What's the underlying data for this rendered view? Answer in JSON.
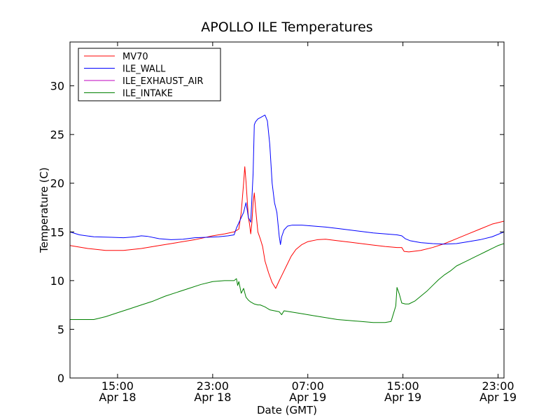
{
  "chart_data": {
    "type": "line",
    "title": "APOLLO ILE Temperatures",
    "xlabel": "Date (GMT)",
    "ylabel": "Temperature (C)",
    "x_unit": "hours",
    "xlim": [
      11.0,
      47.5
    ],
    "ylim": [
      0,
      34.5
    ],
    "y_ticks": [
      0,
      5,
      10,
      15,
      20,
      25,
      30
    ],
    "x_ticks": [
      {
        "x": 15,
        "time": "15:00",
        "date": "Apr 18"
      },
      {
        "x": 23,
        "time": "23:00",
        "date": "Apr 18"
      },
      {
        "x": 31,
        "time": "07:00",
        "date": "Apr 19"
      },
      {
        "x": 39,
        "time": "15:00",
        "date": "Apr 19"
      },
      {
        "x": 47,
        "time": "23:00",
        "date": "Apr 19"
      }
    ],
    "legend_position": "top-left",
    "series": [
      {
        "name": "MV70",
        "color": "#ff0000",
        "points": [
          [
            11.0,
            13.6
          ],
          [
            12.5,
            13.3
          ],
          [
            14.0,
            13.1
          ],
          [
            15.5,
            13.1
          ],
          [
            17.0,
            13.3
          ],
          [
            18.5,
            13.6
          ],
          [
            20.0,
            13.9
          ],
          [
            21.5,
            14.2
          ],
          [
            23.0,
            14.6
          ],
          [
            24.0,
            14.8
          ],
          [
            24.8,
            15.0
          ],
          [
            25.2,
            15.3
          ],
          [
            25.4,
            17.0
          ],
          [
            25.6,
            20.0
          ],
          [
            25.7,
            21.7
          ],
          [
            25.8,
            20.2
          ],
          [
            26.0,
            16.5
          ],
          [
            26.1,
            15.8
          ],
          [
            26.2,
            14.8
          ],
          [
            26.3,
            16.0
          ],
          [
            26.4,
            18.0
          ],
          [
            26.5,
            19.0
          ],
          [
            26.6,
            17.5
          ],
          [
            26.8,
            15.0
          ],
          [
            27.0,
            14.3
          ],
          [
            27.2,
            13.5
          ],
          [
            27.4,
            12.0
          ],
          [
            27.7,
            10.8
          ],
          [
            28.0,
            9.8
          ],
          [
            28.3,
            9.2
          ],
          [
            28.6,
            10.0
          ],
          [
            28.8,
            10.5
          ],
          [
            29.2,
            11.5
          ],
          [
            29.6,
            12.5
          ],
          [
            30.0,
            13.2
          ],
          [
            30.5,
            13.7
          ],
          [
            31.0,
            14.0
          ],
          [
            31.8,
            14.2
          ],
          [
            32.5,
            14.25
          ],
          [
            33.5,
            14.1
          ],
          [
            34.5,
            13.95
          ],
          [
            35.5,
            13.8
          ],
          [
            36.5,
            13.65
          ],
          [
            37.5,
            13.5
          ],
          [
            38.5,
            13.4
          ],
          [
            38.9,
            13.4
          ],
          [
            39.1,
            13.0
          ],
          [
            39.5,
            12.95
          ],
          [
            40.5,
            13.1
          ],
          [
            41.5,
            13.4
          ],
          [
            42.5,
            13.8
          ],
          [
            43.5,
            14.3
          ],
          [
            44.5,
            14.8
          ],
          [
            45.5,
            15.3
          ],
          [
            46.5,
            15.8
          ],
          [
            47.5,
            16.1
          ]
        ]
      },
      {
        "name": "ILE_WALL",
        "color": "#0000ff",
        "points": [
          [
            11.0,
            15.0
          ],
          [
            11.8,
            14.7
          ],
          [
            13.0,
            14.5
          ],
          [
            14.5,
            14.45
          ],
          [
            15.5,
            14.4
          ],
          [
            16.5,
            14.5
          ],
          [
            17.0,
            14.6
          ],
          [
            17.5,
            14.55
          ],
          [
            18.5,
            14.3
          ],
          [
            19.5,
            14.2
          ],
          [
            20.5,
            14.25
          ],
          [
            21.5,
            14.4
          ],
          [
            22.5,
            14.45
          ],
          [
            23.5,
            14.5
          ],
          [
            24.3,
            14.6
          ],
          [
            24.8,
            14.7
          ],
          [
            25.0,
            15.4
          ],
          [
            25.3,
            16.2
          ],
          [
            25.6,
            17.0
          ],
          [
            25.8,
            18.0
          ],
          [
            25.9,
            17.3
          ],
          [
            26.0,
            16.5
          ],
          [
            26.2,
            16.0
          ],
          [
            26.4,
            21.0
          ],
          [
            26.5,
            26.0
          ],
          [
            26.6,
            26.3
          ],
          [
            26.8,
            26.6
          ],
          [
            27.1,
            26.8
          ],
          [
            27.4,
            27.0
          ],
          [
            27.6,
            26.4
          ],
          [
            27.8,
            24.0
          ],
          [
            28.0,
            20.0
          ],
          [
            28.2,
            18.0
          ],
          [
            28.4,
            17.0
          ],
          [
            28.6,
            14.5
          ],
          [
            28.7,
            13.7
          ],
          [
            28.8,
            14.5
          ],
          [
            29.0,
            15.2
          ],
          [
            29.3,
            15.6
          ],
          [
            29.7,
            15.7
          ],
          [
            30.5,
            15.7
          ],
          [
            31.5,
            15.6
          ],
          [
            32.5,
            15.5
          ],
          [
            33.5,
            15.35
          ],
          [
            34.5,
            15.2
          ],
          [
            35.5,
            15.05
          ],
          [
            36.5,
            14.9
          ],
          [
            37.5,
            14.8
          ],
          [
            38.5,
            14.7
          ],
          [
            38.9,
            14.6
          ],
          [
            39.2,
            14.3
          ],
          [
            39.6,
            14.1
          ],
          [
            40.5,
            13.9
          ],
          [
            41.5,
            13.8
          ],
          [
            42.5,
            13.75
          ],
          [
            43.5,
            13.8
          ],
          [
            44.5,
            14.0
          ],
          [
            45.5,
            14.2
          ],
          [
            46.5,
            14.5
          ],
          [
            47.5,
            15.0
          ]
        ]
      },
      {
        "name": "ILE_EXHAUST_AIR",
        "color": "#bf00bf",
        "points": []
      },
      {
        "name": "ILE_INTAKE",
        "color": "#008000",
        "points": [
          [
            11.0,
            6.0
          ],
          [
            12.0,
            6.0
          ],
          [
            13.0,
            6.0
          ],
          [
            14.0,
            6.3
          ],
          [
            15.0,
            6.7
          ],
          [
            16.0,
            7.1
          ],
          [
            17.0,
            7.5
          ],
          [
            18.0,
            7.9
          ],
          [
            19.0,
            8.4
          ],
          [
            20.0,
            8.8
          ],
          [
            21.0,
            9.2
          ],
          [
            22.0,
            9.6
          ],
          [
            23.0,
            9.9
          ],
          [
            24.0,
            10.0
          ],
          [
            24.8,
            10.0
          ],
          [
            25.0,
            10.2
          ],
          [
            25.1,
            9.5
          ],
          [
            25.2,
            9.9
          ],
          [
            25.4,
            8.7
          ],
          [
            25.6,
            9.2
          ],
          [
            25.8,
            8.3
          ],
          [
            26.0,
            8.0
          ],
          [
            26.2,
            7.8
          ],
          [
            26.5,
            7.6
          ],
          [
            26.8,
            7.5
          ],
          [
            27.0,
            7.5
          ],
          [
            27.4,
            7.3
          ],
          [
            27.8,
            7.0
          ],
          [
            28.2,
            6.9
          ],
          [
            28.6,
            6.8
          ],
          [
            28.8,
            6.5
          ],
          [
            29.0,
            6.9
          ],
          [
            29.5,
            6.8
          ],
          [
            30.5,
            6.6
          ],
          [
            31.5,
            6.4
          ],
          [
            32.5,
            6.2
          ],
          [
            33.5,
            6.0
          ],
          [
            34.5,
            5.9
          ],
          [
            35.5,
            5.8
          ],
          [
            36.5,
            5.7
          ],
          [
            37.5,
            5.7
          ],
          [
            38.0,
            5.8
          ],
          [
            38.2,
            6.6
          ],
          [
            38.4,
            7.4
          ],
          [
            38.5,
            9.3
          ],
          [
            38.7,
            8.6
          ],
          [
            38.9,
            7.7
          ],
          [
            39.2,
            7.6
          ],
          [
            39.5,
            7.6
          ],
          [
            40.0,
            7.9
          ],
          [
            40.5,
            8.4
          ],
          [
            41.0,
            8.9
          ],
          [
            41.5,
            9.5
          ],
          [
            42.0,
            10.1
          ],
          [
            42.5,
            10.6
          ],
          [
            43.0,
            11.0
          ],
          [
            43.5,
            11.5
          ],
          [
            44.0,
            11.8
          ],
          [
            44.5,
            12.1
          ],
          [
            45.0,
            12.4
          ],
          [
            45.5,
            12.7
          ],
          [
            46.0,
            13.0
          ],
          [
            46.5,
            13.3
          ],
          [
            47.0,
            13.6
          ],
          [
            47.5,
            13.8
          ]
        ]
      }
    ]
  }
}
